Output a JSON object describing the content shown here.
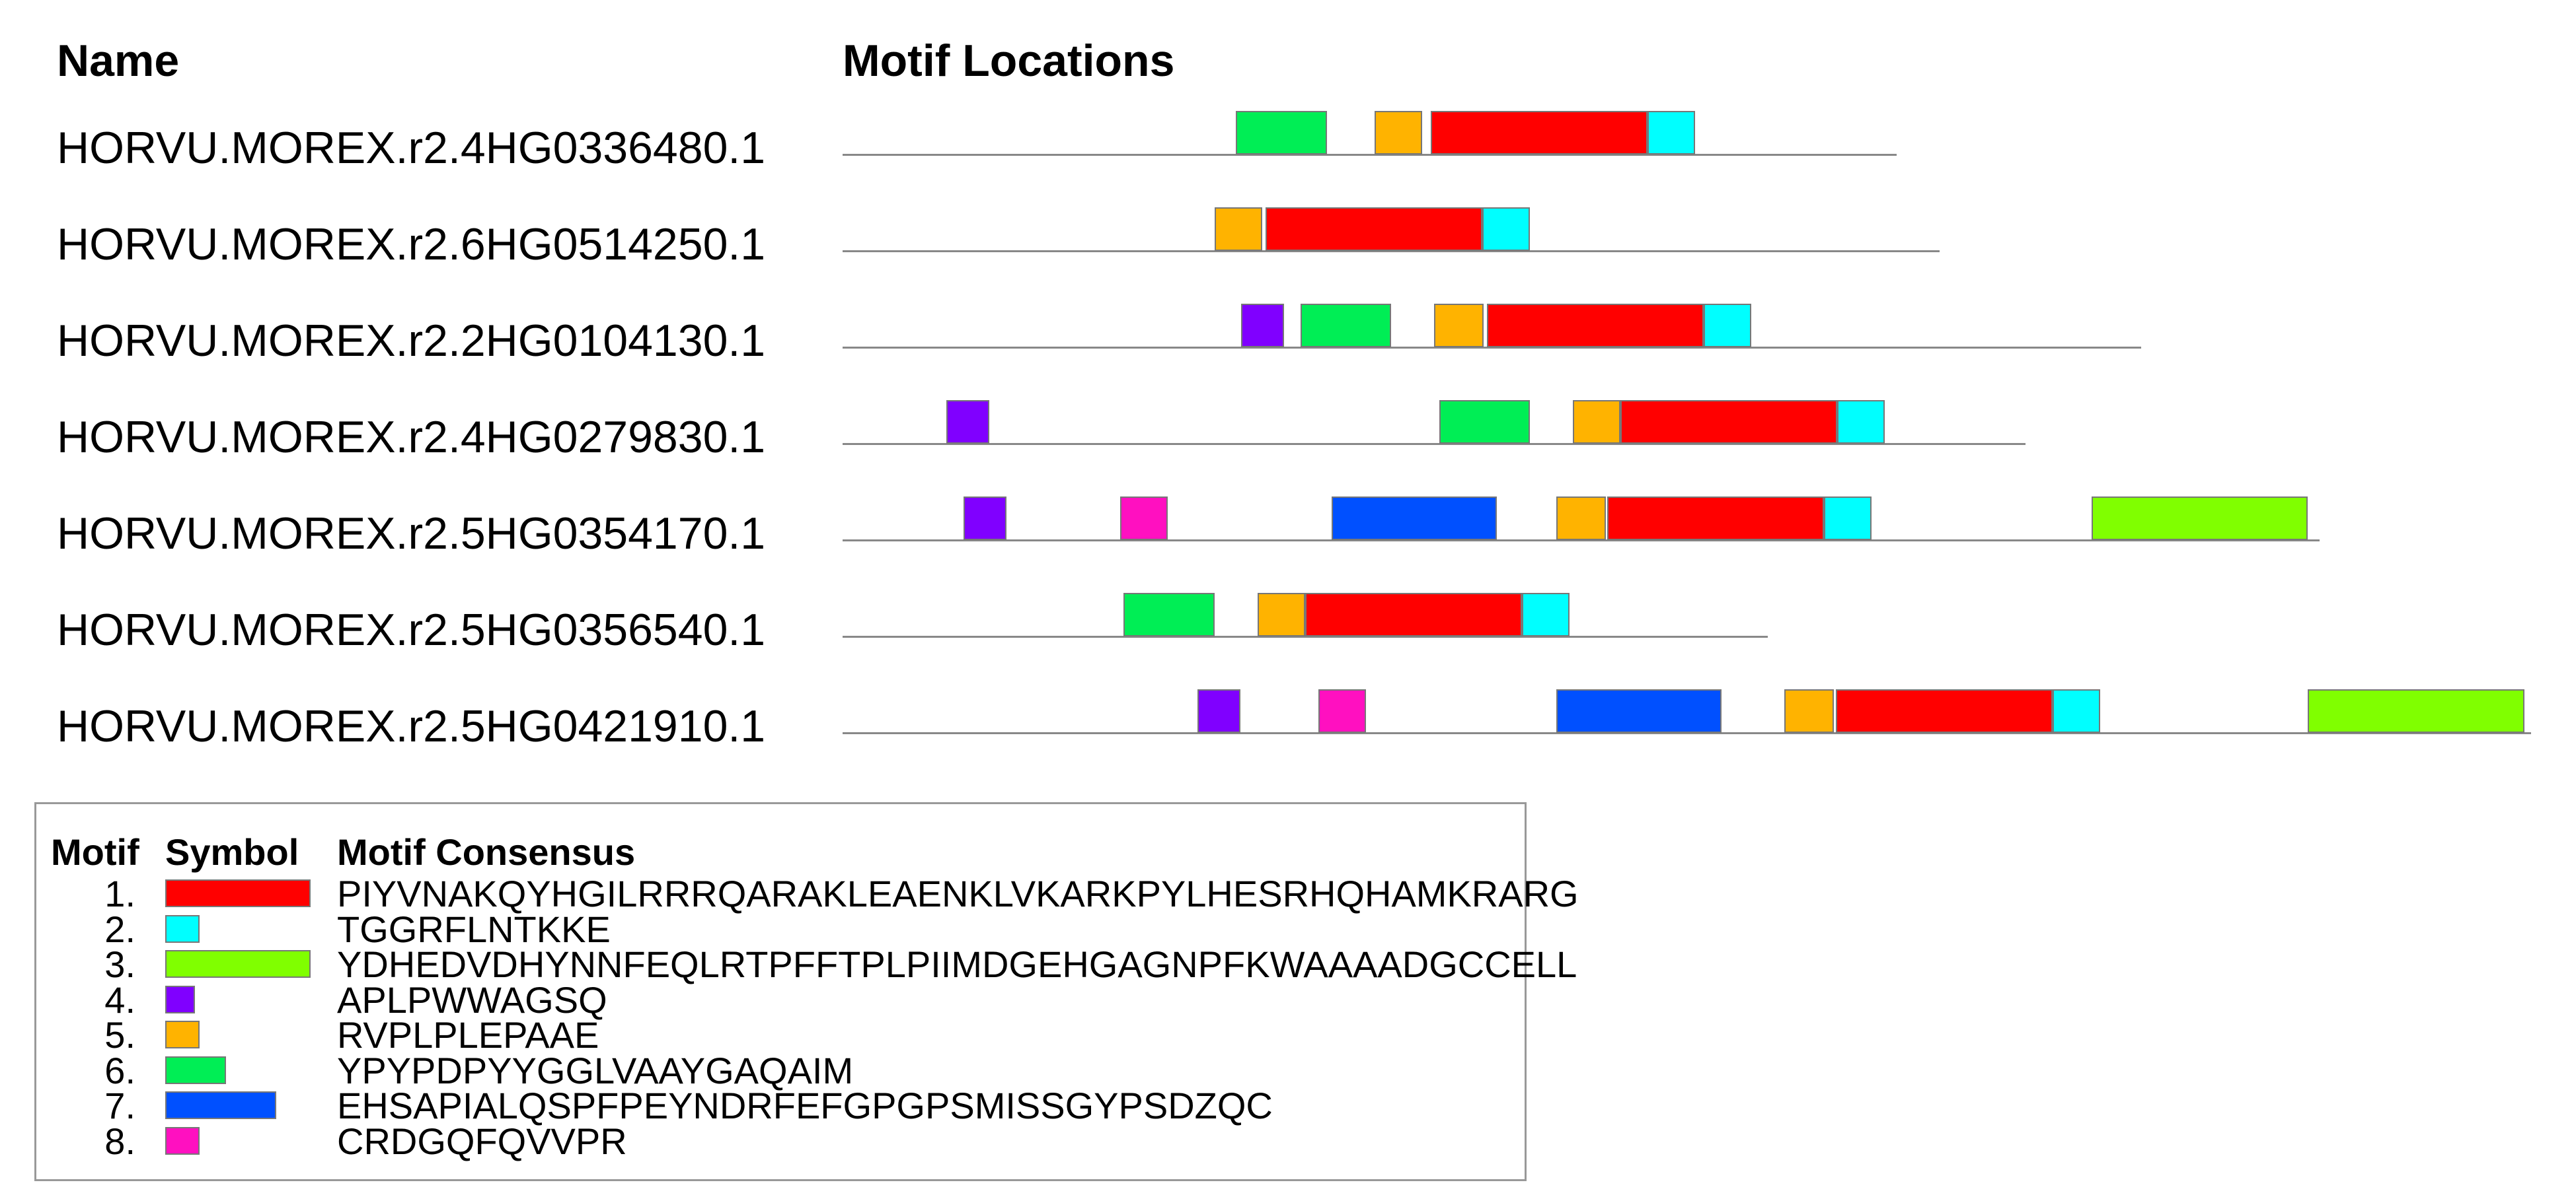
{
  "headers": {
    "name": "Name",
    "motif_locations": "Motif Locations"
  },
  "colors": {
    "1": "#ff0000",
    "2": "#00ffff",
    "3": "#80ff00",
    "4": "#8000ff",
    "5": "#ffb300",
    "6": "#00ee55",
    "7": "#0050ff",
    "8": "#ff10c0"
  },
  "sequences": [
    {
      "name": "HORVU.MOREX.r2.4HG0336480.1"
    },
    {
      "name": "HORVU.MOREX.r2.6HG0514250.1"
    },
    {
      "name": "HORVU.MOREX.r2.2HG0104130.1"
    },
    {
      "name": "HORVU.MOREX.r2.4HG0279830.1"
    },
    {
      "name": "HORVU.MOREX.r2.5HG0354170.1"
    },
    {
      "name": "HORVU.MOREX.r2.5HG0356540.1"
    },
    {
      "name": "HORVU.MOREX.r2.5HG0421910.1"
    }
  ],
  "legend": {
    "headers": {
      "motif": "Motif",
      "symbol": "Symbol",
      "consensus": "Motif Consensus"
    },
    "items": [
      {
        "num": "1.",
        "motif": "1",
        "consensus": "PIYVNAKQYHGILRRRQARAKLEAENKLVKARKPYLHESRHQHAMKRARG"
      },
      {
        "num": "2.",
        "motif": "2",
        "consensus": "TGGRFLNTKKE"
      },
      {
        "num": "3.",
        "motif": "3",
        "consensus": "YDHEDVDHYNNFEQLRTPFFTPLPIIMDGEHGAGNPFKWAAAADGCCELL"
      },
      {
        "num": "4.",
        "motif": "4",
        "consensus": "APLPWWAGSQ"
      },
      {
        "num": "5.",
        "motif": "5",
        "consensus": "RVPLPLEPAAE"
      },
      {
        "num": "6.",
        "motif": "6",
        "consensus": "YPYPDPYYGGLVAAYGAQAIM"
      },
      {
        "num": "7.",
        "motif": "7",
        "consensus": "EHSAPIALQSPFPEYNDRFEFGPGPSMISSGYPSDZQC"
      },
      {
        "num": "8.",
        "motif": "8",
        "consensus": "CRDGQFQVVPR"
      }
    ]
  }
}
